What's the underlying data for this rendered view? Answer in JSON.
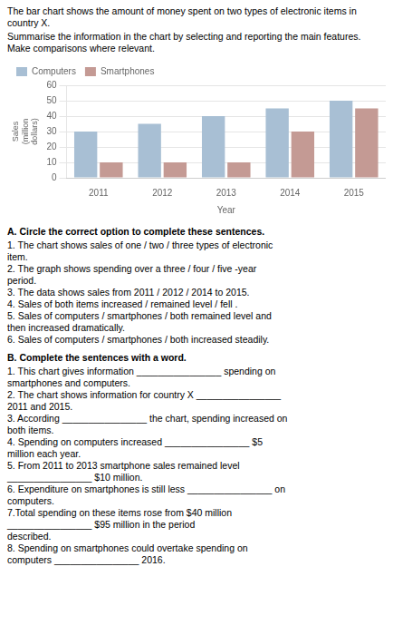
{
  "chart_data": {
    "type": "bar",
    "title": "The bar chart shows the amount of money spent on two types of electronic items in country X.",
    "subtitle": "Summarise the information in the chart by selecting and reporting the main features. Make comparisons where relevant.",
    "x_label": "Year",
    "y_label": "Sales\n(million\ndollars)",
    "categories": [
      "2011",
      "2012",
      "2013",
      "2014",
      "2015"
    ],
    "series": [
      {
        "name": "Computers",
        "color": "#a8bfd4",
        "values": [
          30,
          35,
          40,
          45,
          50
        ]
      },
      {
        "name": "Smartphones",
        "color": "#c49a94",
        "values": [
          10,
          10,
          10,
          30,
          45
        ]
      }
    ],
    "ylim": [
      0,
      60
    ],
    "yticks": [
      0,
      10,
      20,
      30,
      40,
      50,
      60
    ],
    "grid": true,
    "legend": "upper left",
    "annotations": [
      "A. Circle the correct option to complete these sentences.",
      "1. The chart shows sales of one / two / three types of electronic",
      "item.",
      "2. The graph shows spending over a three / four / five -year",
      "period.",
      "3. The data shows sales from 2011 / 2012 / 2014 to 2015.",
      "4. Sales of both items increased / remained level / fell .",
      "5. Sales of computers / smartphones / both remained level and",
      "then increased dramatically.",
      "6. Sales of computers / smartphones / both increased steadily.",
      "B. Complete the sentences with a word.",
      "1. This chart gives information ________________ spending on",
      "smartphones and computers.",
      "2. The chart shows information for country X ________________",
      "2011 and 2015.",
      "3. According ________________ the chart, spending increased on",
      "both items.",
      "4. Spending on computers increased ________________ $5",
      "million each year.",
      "5. From 2011 to 2013 smartphone sales remained level",
      "________________ $10 million.",
      "6. Expenditure on smartphones is still less ________________ on",
      "computers.",
      "7.Total spending on these items rose from $40 million",
      "________________ $95 million in the period",
      "described.",
      "8. Spending on smartphones could overtake spending on",
      "computers ________________ 2016."
    ]
  }
}
